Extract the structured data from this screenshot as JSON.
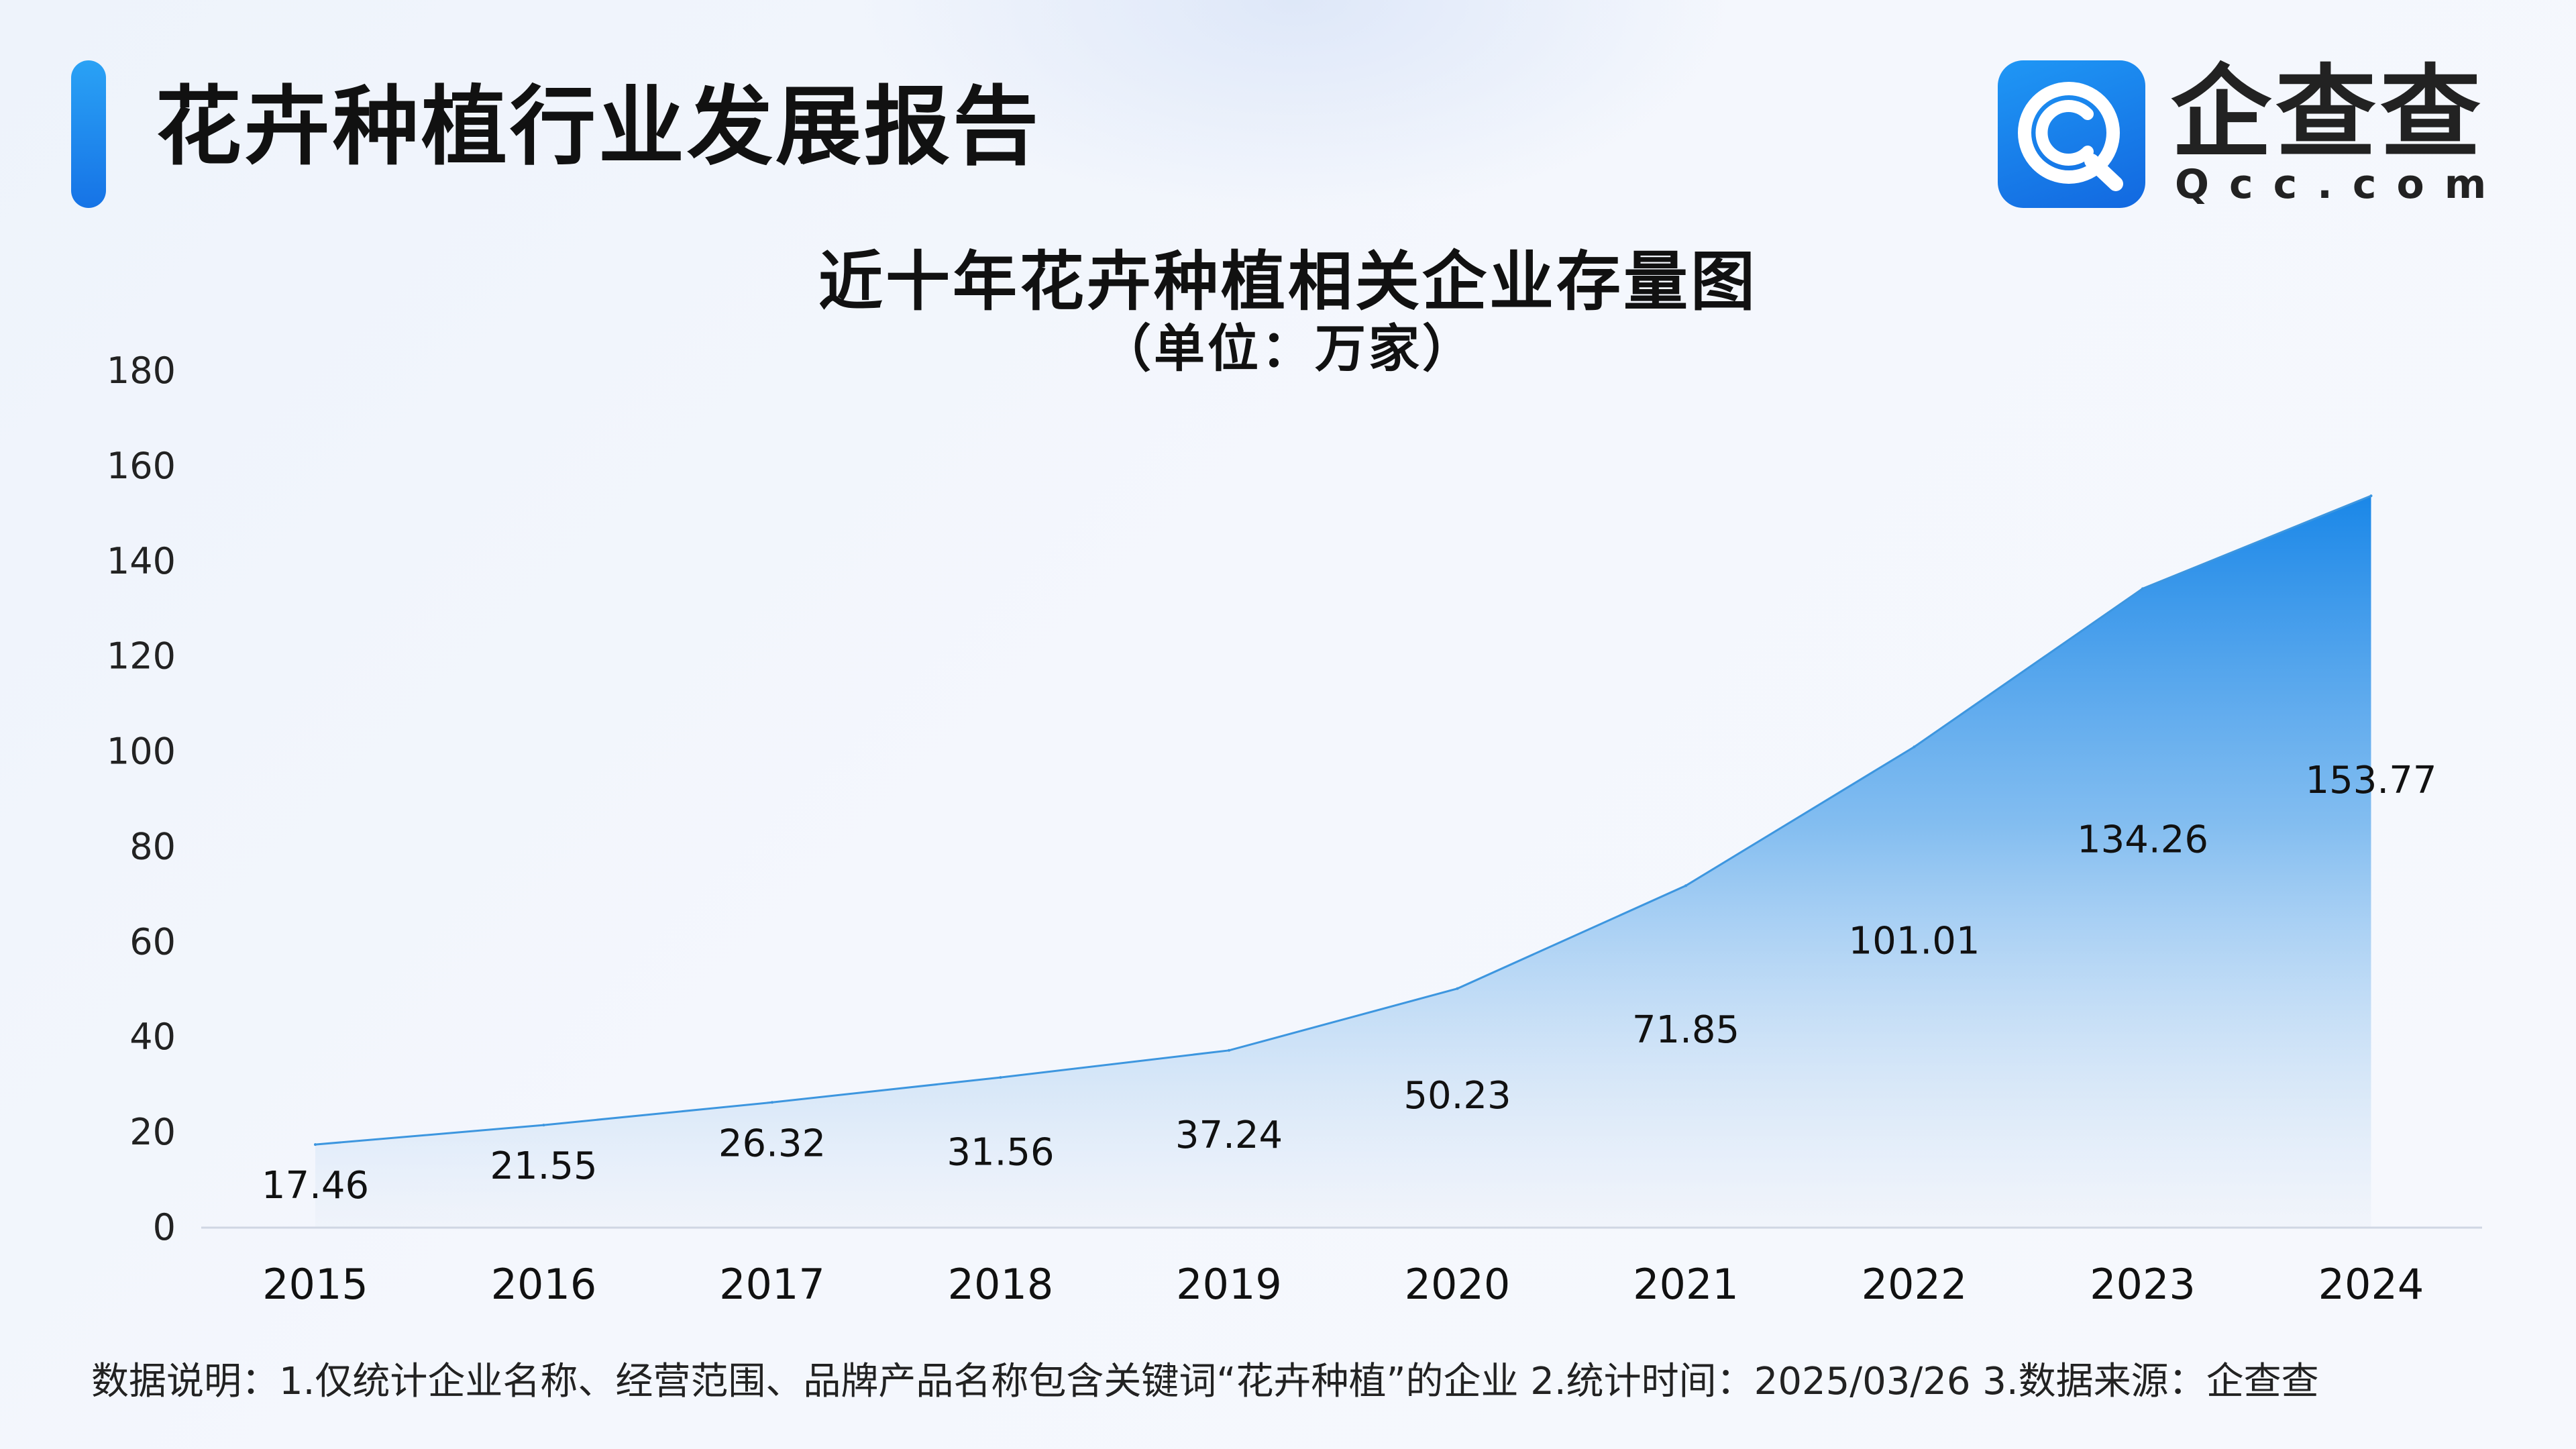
{
  "header": {
    "title": "花卉种植行业发展报告",
    "logo": {
      "icon": "qcc-logo-icon",
      "name": "企查查",
      "domain": "Qcc.com"
    }
  },
  "chart_data": {
    "type": "area",
    "title": "近十年花卉种植相关企业存量图",
    "subtitle": "（单位：万家）",
    "categories": [
      "2015",
      "2016",
      "2017",
      "2018",
      "2019",
      "2020",
      "2021",
      "2022",
      "2023",
      "2024"
    ],
    "values": [
      17.46,
      21.55,
      26.32,
      31.56,
      37.24,
      50.23,
      71.85,
      101.01,
      134.26,
      153.77
    ],
    "data_labels": [
      "17.46",
      "21.55",
      "26.32",
      "31.56",
      "37.24",
      "50.23",
      "71.85",
      "101.01",
      "134.26",
      "153.77"
    ],
    "ylim": [
      0,
      180
    ],
    "yticks": [
      "0",
      "20",
      "40",
      "60",
      "80",
      "100",
      "120",
      "140",
      "160",
      "180"
    ],
    "xlabel": "",
    "ylabel": "",
    "grid": false,
    "colors": {
      "area_top": "#1a87e8",
      "area_bottom": "#e9eef7",
      "line": "#3d96df",
      "axis": "#cfd6e3"
    }
  },
  "footnote": "数据说明：1.仅统计企业名称、经营范围、品牌产品名称包含关键词“花卉种植”的企业   2.统计时间：2025/03/26    3.数据来源：企查查"
}
